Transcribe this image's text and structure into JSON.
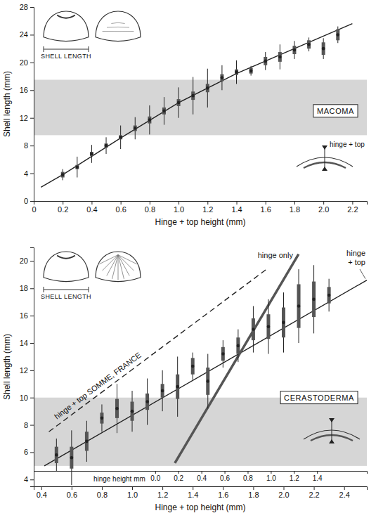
{
  "chart_data": [
    {
      "type": "scatter",
      "title": "MACOMA",
      "x_label": "Hinge + top height (mm)",
      "y_label": "Shell length (mm)",
      "xlim": [
        0,
        2.3
      ],
      "ylim": [
        0,
        28
      ],
      "xticks": [
        0,
        0.2,
        0.4,
        0.6,
        0.8,
        {
          "value": 1,
          "label": "1.0"
        },
        1.2,
        1.4,
        1.6,
        1.8,
        {
          "value": 2,
          "label": "2.0"
        },
        2.2
      ],
      "yticks": [
        0,
        4,
        8,
        12,
        16,
        20,
        24,
        28
      ],
      "shaded_band": [
        9.5,
        17.5
      ],
      "annotations": [
        "SHELL LENGTH",
        "hinge + top"
      ],
      "series": [
        {
          "type": "scatter",
          "marker": "dot",
          "color": "#222222",
          "x": [
            0.2,
            0.3,
            0.4,
            0.5,
            0.6,
            0.7,
            0.8,
            0.9,
            1.0,
            1.1,
            1.2,
            1.3,
            1.4,
            1.5,
            1.6,
            1.7,
            1.8,
            1.9,
            2.0,
            2.1
          ],
          "values": [
            3.8,
            4.9,
            6.8,
            8,
            9.2,
            10.5,
            11.7,
            13,
            14.2,
            15.2,
            16.3,
            17.8,
            18.6,
            18.8,
            20.2,
            20.8,
            21.8,
            22.6,
            22,
            24
          ],
          "errors": [
            0.8,
            1.5,
            1.3,
            1.2,
            1.7,
            1.6,
            2.1,
            2,
            2.2,
            2.7,
            2.8,
            1.8,
            1.7,
            0.7,
            1.3,
            1.8,
            1.3,
            1,
            1.5,
            1.2
          ],
          "sd": [
            0.4,
            0.3,
            0.3,
            0.3,
            0.3,
            0.4,
            0.5,
            0.5,
            0.5,
            0.6,
            0.6,
            0.5,
            0.4,
            0.4,
            0.6,
            0.7,
            0.6,
            0.6,
            0.9,
            0.8
          ]
        },
        {
          "type": "line",
          "line_style": "solid",
          "color": "#222222",
          "x": [
            0.05,
            0.2,
            0.6,
            1.0,
            1.4,
            1.8,
            2.2
          ],
          "values": [
            2,
            3.8,
            9.1,
            14.2,
            18.4,
            22,
            25.6
          ]
        }
      ]
    },
    {
      "type": "scatter",
      "title": "CERASTODERMA",
      "x_label": "Hinge + top height (mm)",
      "y_label": "Shell length (mm)",
      "xlim": [
        0.35,
        2.55
      ],
      "ylim": [
        3.5,
        21
      ],
      "xticks": [
        0.4,
        0.6,
        0.8,
        {
          "value": 1,
          "label": "1.0"
        },
        1.2,
        1.4,
        1.6,
        1.8,
        {
          "value": 2,
          "label": "2.0"
        },
        2.2,
        2.4
      ],
      "yticks": [
        4,
        6,
        8,
        10,
        12,
        14,
        16,
        18,
        20
      ],
      "x2_label": "hinge height mm",
      "x2lim": [
        -1.05,
        1.83
      ],
      "x2ticks": [
        {
          "value": 0,
          "label": "0.0"
        },
        0.2,
        0.4,
        0.6,
        0.8,
        {
          "value": 1,
          "label": "1.0"
        },
        1.2,
        1.4
      ],
      "shaded_band": [
        5,
        10
      ],
      "annotations": [
        "SHELL LENGTH"
      ],
      "series": [
        {
          "type": "scatter",
          "marker": "dot",
          "color": "#222222",
          "x": [
            0.5,
            0.6,
            0.7,
            0.8,
            0.9,
            1.0,
            1.1,
            1.2,
            1.3,
            1.4,
            1.5,
            1.6,
            1.7,
            1.8,
            1.9,
            2.0,
            2.1,
            2.2,
            2.3
          ],
          "values": [
            5.8,
            5.6,
            6.8,
            8.5,
            9.2,
            9,
            9.7,
            10.5,
            10.8,
            12.3,
            11.2,
            13.2,
            13.8,
            15,
            15.2,
            15.5,
            16.7,
            17.2,
            17.5
          ],
          "errors": [
            1.2,
            2,
            1.5,
            1,
            1.8,
            1.5,
            1.7,
            1.5,
            2.2,
            1,
            2,
            1,
            1.2,
            1.7,
            2,
            2.2,
            2.7,
            2.5,
            1.2
          ],
          "sd": [
            0.6,
            0.8,
            0.7,
            0.4,
            0.7,
            0.7,
            0.6,
            0.5,
            0.9,
            0.6,
            1,
            0.5,
            0.6,
            0.8,
            0.9,
            1.1,
            1.6,
            1.3,
            0.6
          ]
        },
        {
          "name": "hinge + top",
          "type": "line",
          "line_style": "solid",
          "color": "#222222",
          "x": [
            0.42,
            2.55
          ],
          "values": [
            5,
            18.6
          ]
        },
        {
          "name": "hinge + top SOMME, FRANCE",
          "type": "line",
          "line_style": "dashed",
          "color": "#222222",
          "x": [
            0.45,
            1.9
          ],
          "values": [
            7.5,
            19.5
          ]
        },
        {
          "name": "hinge only",
          "type": "line",
          "line_style": "solid",
          "color": "#555555",
          "axis": "x2",
          "x": [
            0.17,
            1.24
          ],
          "values": [
            5.2,
            20.5
          ]
        }
      ]
    }
  ]
}
